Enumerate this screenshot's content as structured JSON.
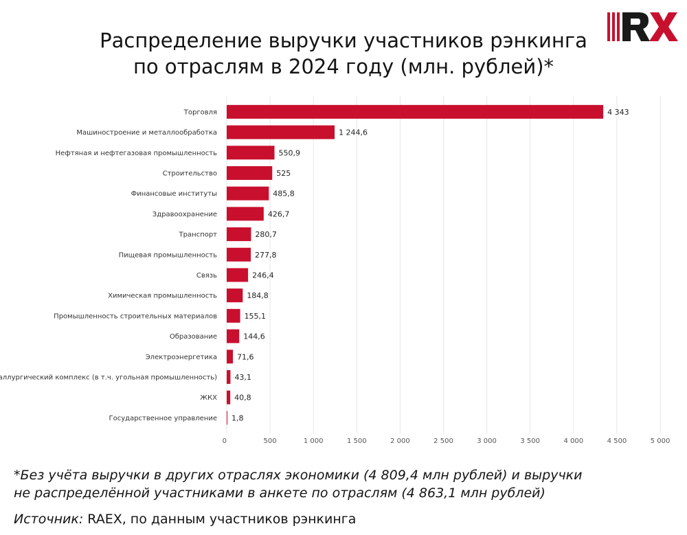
{
  "title": {
    "line1": "Распределение выручки участников рэнкинга",
    "line2": "по отраслям в 2024 году (млн. рублей)*"
  },
  "logo": {
    "text": "RX",
    "colors": {
      "red": "#c8102e",
      "dark": "#1a1a1a"
    }
  },
  "chart_data": {
    "type": "bar",
    "orientation": "horizontal",
    "categories": [
      "Торговля",
      "Машиностроение и металлообработка",
      "Нефтяная и нефтегазовая промышленность",
      "Строительство",
      "Финансовые институты",
      "Здравоохранение",
      "Транспорт",
      "Пищевая промышленность",
      "Связь",
      "Химическая промышленность",
      "Промышленность строительных материалов",
      "Образование",
      "Электроэнергетика",
      "Металлургический комплекс (в т.ч. угольная промышленность)",
      "ЖКХ",
      "Государственное управление"
    ],
    "values": [
      4343,
      1244.6,
      550.9,
      525,
      485.8,
      426.7,
      280.7,
      277.8,
      246.4,
      184.8,
      155.1,
      144.6,
      71.6,
      43.1,
      40.8,
      1.8
    ],
    "value_labels": [
      "4 343",
      "1 244,6",
      "550,9",
      "525",
      "485,8",
      "426,7",
      "280,7",
      "277,8",
      "246,4",
      "184,8",
      "155,1",
      "144,6",
      "71,6",
      "43,1",
      "40,8",
      "1,8"
    ],
    "xlim": [
      0,
      5000
    ],
    "x_ticks": [
      0,
      500,
      1000,
      1500,
      2000,
      2500,
      3000,
      3500,
      4000,
      4500,
      5000
    ],
    "x_tick_labels": [
      "0",
      "500",
      "1 000",
      "1 500",
      "2 000",
      "2 500",
      "3 000",
      "3 500",
      "4 000",
      "4 500",
      "5 000"
    ],
    "grid": "vertical",
    "bar_color": "#c8102e",
    "grid_color": "#e6e6e6"
  },
  "footnote": {
    "line1": "*Без учёта выручки в других отраслях экономики (4 809,4 млн рублей) и выручки",
    "line2": "не распределённой участниками в анкете по отраслям (4 863,1 млн рублей)",
    "source_label": "Источник:",
    "source_text": " RAEX, по данным участников рэнкинга"
  }
}
